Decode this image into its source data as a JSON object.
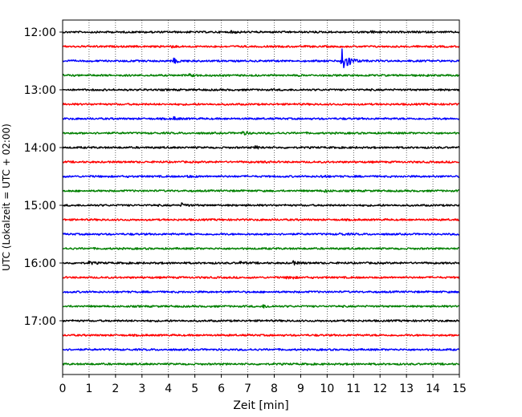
{
  "chart_data": {
    "type": "line",
    "title": "",
    "xlabel": "Zeit  [min]",
    "ylabel": "UTC (Lokalzeit = UTC + 02:00)",
    "xlim": [
      0,
      15
    ],
    "x_ticks": [
      0,
      1,
      2,
      3,
      4,
      5,
      6,
      7,
      8,
      9,
      10,
      11,
      12,
      13,
      14,
      15
    ],
    "x_tick_labels": [
      "0",
      "1",
      "2",
      "3",
      "4",
      "5",
      "6",
      "7",
      "8",
      "9",
      "10",
      "11",
      "12",
      "13",
      "14",
      "15"
    ],
    "y_ticks": [
      "12:00",
      "13:00",
      "14:00",
      "15:00",
      "16:00",
      "17:00"
    ],
    "row_interval_minutes": 15,
    "grid": "vertical dotted",
    "color_cycle": [
      "#000000",
      "#ff0000",
      "#0000ff",
      "#008000"
    ],
    "rows": [
      {
        "start": "12:00",
        "color": "#000000",
        "events": [
          {
            "t": 6.4,
            "a": 0.25
          },
          {
            "t": 11.6,
            "a": 0.25
          }
        ]
      },
      {
        "start": "12:15",
        "color": "#ff0000",
        "events": [
          {
            "t": 4.0,
            "a": 0.3
          }
        ]
      },
      {
        "start": "12:30",
        "color": "#0000ff",
        "events": [
          {
            "t": 4.2,
            "a": 0.5
          },
          {
            "t": 10.55,
            "a": 3.2
          }
        ]
      },
      {
        "start": "12:45",
        "color": "#008000",
        "events": [
          {
            "t": 4.8,
            "a": 0.2
          }
        ]
      },
      {
        "start": "13:00",
        "color": "#000000",
        "events": []
      },
      {
        "start": "13:15",
        "color": "#ff0000",
        "events": []
      },
      {
        "start": "13:30",
        "color": "#0000ff",
        "events": [
          {
            "t": 4.2,
            "a": 0.25
          }
        ]
      },
      {
        "start": "13:45",
        "color": "#008000",
        "events": [
          {
            "t": 6.8,
            "a": 0.4
          }
        ]
      },
      {
        "start": "14:00",
        "color": "#000000",
        "events": [
          {
            "t": 7.3,
            "a": 0.3
          }
        ]
      },
      {
        "start": "14:15",
        "color": "#ff0000",
        "events": [
          {
            "t": 7.6,
            "a": 0.15
          }
        ]
      },
      {
        "start": "14:30",
        "color": "#0000ff",
        "events": [
          {
            "t": 4.7,
            "a": 0.2
          },
          {
            "t": 9.8,
            "a": 0.2
          }
        ]
      },
      {
        "start": "14:45",
        "color": "#008000",
        "events": [
          {
            "t": 9.9,
            "a": 0.2
          }
        ]
      },
      {
        "start": "15:00",
        "color": "#000000",
        "events": [
          {
            "t": 4.5,
            "a": 0.35
          }
        ]
      },
      {
        "start": "15:15",
        "color": "#ff0000",
        "events": []
      },
      {
        "start": "15:30",
        "color": "#0000ff",
        "events": [
          {
            "t": 10.5,
            "a": 0.2
          }
        ]
      },
      {
        "start": "15:45",
        "color": "#008000",
        "events": []
      },
      {
        "start": "16:00",
        "color": "#000000",
        "events": [
          {
            "t": 1.0,
            "a": 0.3
          },
          {
            "t": 6.7,
            "a": 0.25
          },
          {
            "t": 8.7,
            "a": 0.35
          }
        ]
      },
      {
        "start": "16:15",
        "color": "#ff0000",
        "events": [
          {
            "t": 8.5,
            "a": 0.4
          }
        ]
      },
      {
        "start": "16:30",
        "color": "#0000ff",
        "events": []
      },
      {
        "start": "16:45",
        "color": "#008000",
        "events": [
          {
            "t": 7.6,
            "a": 0.3
          }
        ]
      },
      {
        "start": "17:00",
        "color": "#000000",
        "events": []
      },
      {
        "start": "17:15",
        "color": "#ff0000",
        "events": []
      },
      {
        "start": "17:30",
        "color": "#0000ff",
        "events": []
      },
      {
        "start": "17:45",
        "color": "#008000",
        "events": []
      }
    ]
  }
}
